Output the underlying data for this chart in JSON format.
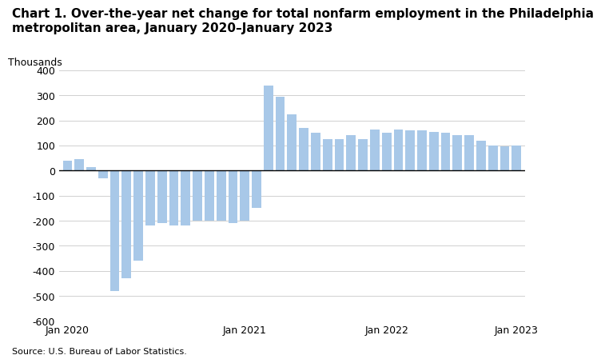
{
  "title_line1": "Chart 1. Over-the-year net change for total nonfarm employment in the Philadelphia",
  "title_line2": "metropolitan area, January 2020–January 2023",
  "ylabel": "Thousands",
  "source": "Source: U.S. Bureau of Labor Statistics.",
  "bar_color": "#a8c8e8",
  "ylim": [
    -600,
    400
  ],
  "yticks": [
    -600,
    -500,
    -400,
    -300,
    -200,
    -100,
    0,
    100,
    200,
    300,
    400
  ],
  "xtick_labels": [
    "Jan 2020",
    "Jan 2021",
    "Jan 2022",
    "Jan 2023"
  ],
  "values": [
    40,
    45,
    15,
    -30,
    -480,
    -430,
    -360,
    -220,
    -210,
    -220,
    -220,
    -200,
    -200,
    -200,
    -210,
    -200,
    -150,
    340,
    295,
    225,
    170,
    150,
    125,
    125,
    140,
    125,
    165,
    150,
    165,
    160,
    160,
    155,
    150,
    140,
    140,
    120,
    100,
    95,
    100
  ],
  "bar_width": 0.8,
  "background_color": "#ffffff",
  "grid_color": "#d0d0d0",
  "zero_line_color": "#000000",
  "title_fontsize": 11,
  "tick_fontsize": 9,
  "source_fontsize": 8,
  "ylabel_fontsize": 9,
  "jan2020_idx": 0,
  "jan2021_idx": 15,
  "jan2022_idx": 27,
  "jan2023_idx": 38
}
